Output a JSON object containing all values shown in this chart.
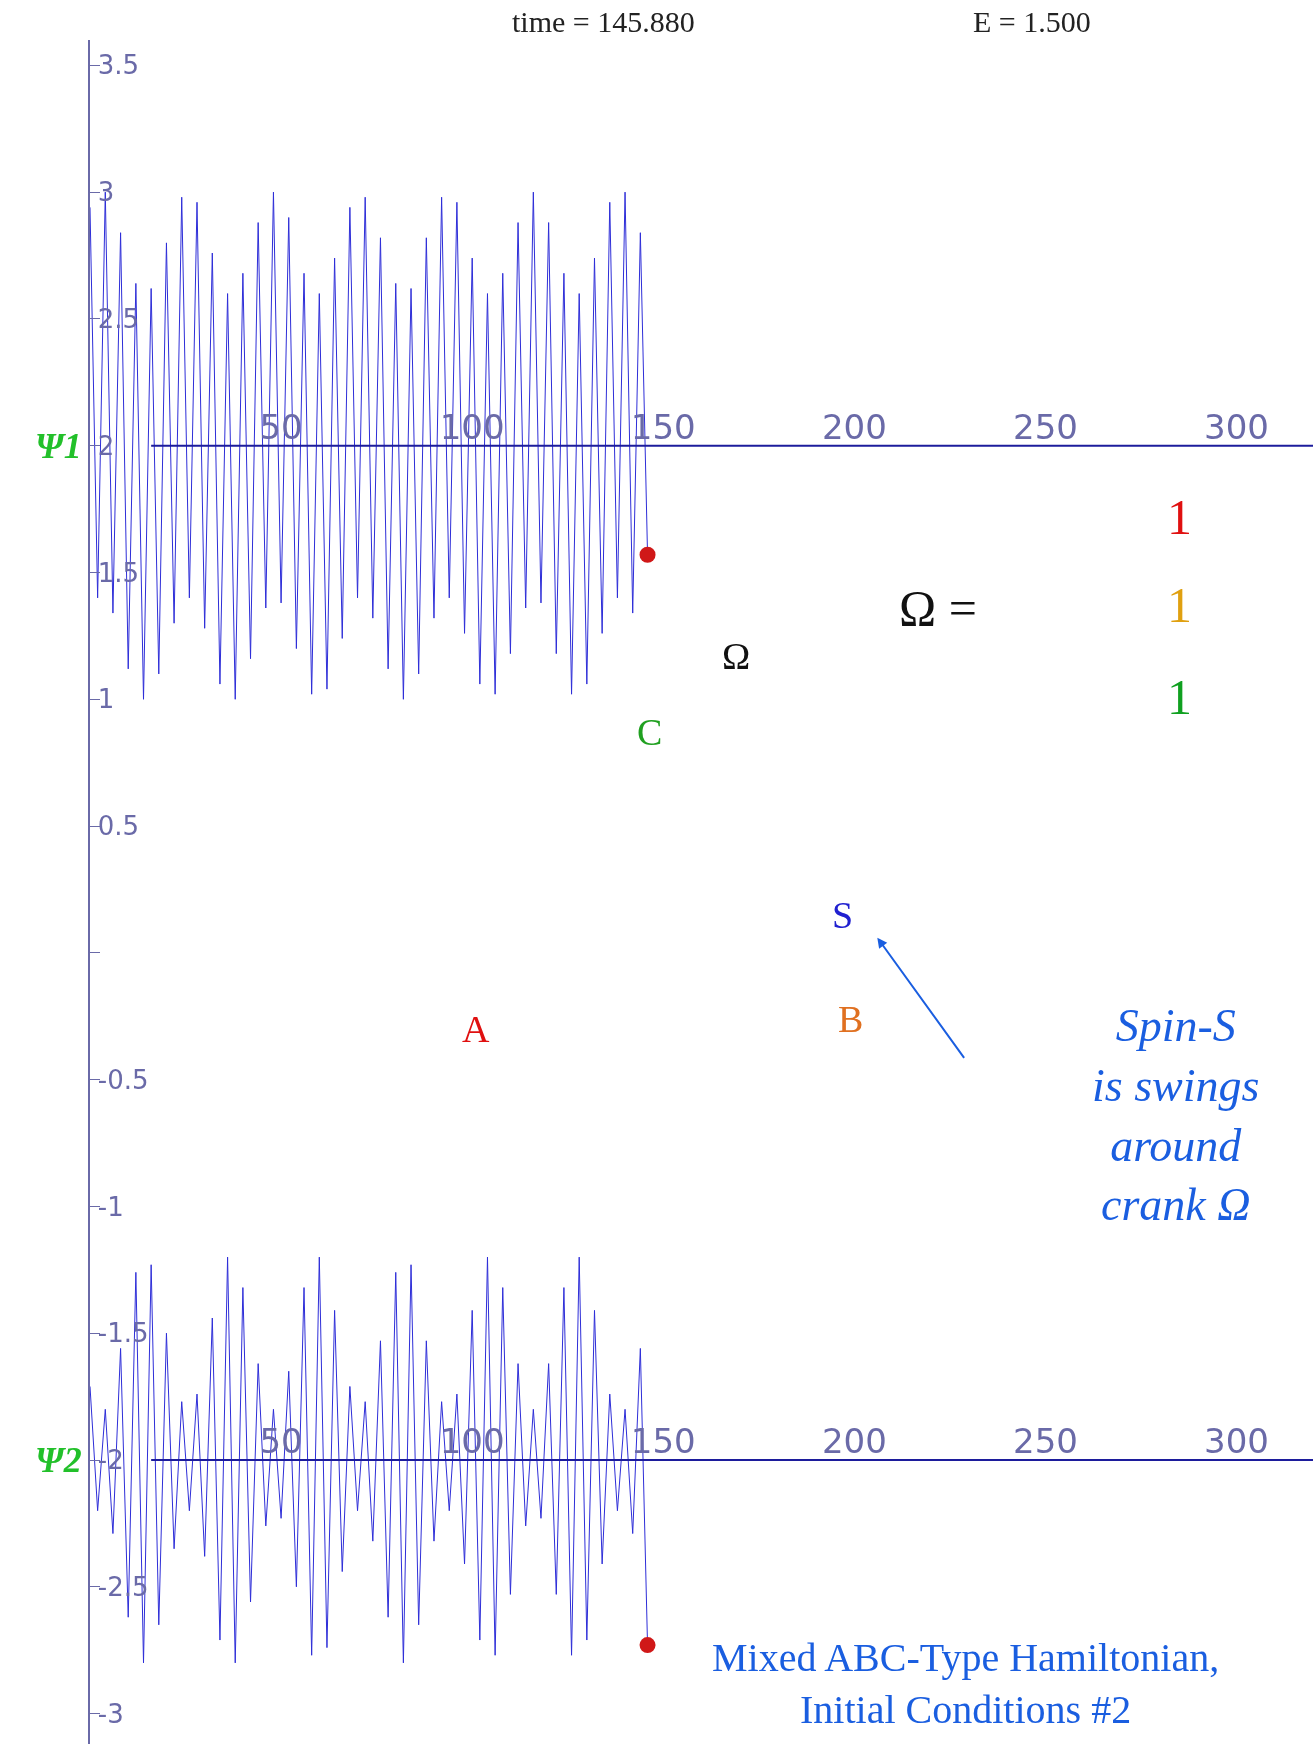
{
  "chart_data": {
    "type": "line",
    "x": [
      0,
      2,
      4,
      6,
      8,
      10,
      12,
      14,
      16,
      18,
      20,
      22,
      24,
      26,
      28,
      30,
      32,
      34,
      36,
      38,
      40,
      42,
      44,
      46,
      48,
      50,
      52,
      54,
      56,
      58,
      60,
      62,
      64,
      66,
      68,
      70,
      72,
      74,
      76,
      78,
      80,
      82,
      84,
      86,
      88,
      90,
      92,
      94,
      96,
      98,
      100,
      102,
      104,
      106,
      108,
      110,
      112,
      114,
      116,
      118,
      120,
      122,
      124,
      126,
      128,
      130,
      132,
      134,
      136,
      138,
      140,
      142,
      144,
      145.88
    ],
    "series": [
      {
        "color": "#2e2ed8",
        "values": [
          2.94,
          1.4,
          3.0,
          1.34,
          2.84,
          1.12,
          2.64,
          1.0,
          2.62,
          1.1,
          2.8,
          1.3,
          2.98,
          1.4,
          2.96,
          1.28,
          2.76,
          1.06,
          2.6,
          1.0,
          2.68,
          1.16,
          2.88,
          1.36,
          3.0,
          1.38,
          2.9,
          1.2,
          2.68,
          1.02,
          2.6,
          1.04,
          2.74,
          1.24,
          2.94,
          1.4,
          2.98,
          1.32,
          2.82,
          1.12,
          2.64,
          1.0,
          2.62,
          1.1,
          2.82,
          1.32,
          2.98,
          1.4,
          2.96,
          1.26,
          2.74,
          1.06,
          2.6,
          1.02,
          2.68,
          1.18,
          2.88,
          1.36,
          3.0,
          1.38,
          2.88,
          1.18,
          2.68,
          1.02,
          2.6,
          1.06,
          2.74,
          1.26,
          2.96,
          1.4,
          3.0,
          1.34,
          2.84,
          1.57
        ]
      },
      {
        "color": "#2e2ed8",
        "axis": "x2",
        "values": [
          -1.71,
          -2.2,
          -1.8,
          -2.29,
          -1.56,
          -2.62,
          -1.26,
          -2.8,
          -1.23,
          -2.65,
          -1.5,
          -2.35,
          -1.77,
          -2.2,
          -1.74,
          -2.38,
          -1.44,
          -2.71,
          -1.2,
          -2.8,
          -1.32,
          -2.56,
          -1.62,
          -2.26,
          -1.8,
          -2.23,
          -1.65,
          -2.5,
          -1.32,
          -2.77,
          -1.2,
          -2.74,
          -1.41,
          -2.44,
          -1.71,
          -2.2,
          -1.77,
          -2.32,
          -1.53,
          -2.62,
          -1.26,
          -2.8,
          -1.23,
          -2.65,
          -1.53,
          -2.32,
          -1.77,
          -2.2,
          -1.74,
          -2.41,
          -1.41,
          -2.71,
          -1.2,
          -2.77,
          -1.32,
          -2.53,
          -1.62,
          -2.26,
          -1.8,
          -2.23,
          -1.62,
          -2.53,
          -1.32,
          -2.77,
          -1.2,
          -2.71,
          -1.41,
          -2.41,
          -1.74,
          -2.2,
          -1.8,
          -2.29,
          -1.56,
          -2.73
        ]
      },
      {
        "type": "scatter",
        "marker": "circle",
        "color": "#d01818",
        "x": [
          145.88
        ],
        "values": [
          1.57
        ]
      },
      {
        "type": "scatter",
        "marker": "circle",
        "color": "#d01818",
        "axis": "x2",
        "x": [
          145.88
        ],
        "values": [
          -2.73
        ]
      }
    ],
    "xlim": [
      0,
      320
    ],
    "xticks": [
      50,
      100,
      150,
      200,
      250,
      300
    ],
    "x2lim": [
      0,
      320
    ],
    "x2ticks": [
      50,
      100,
      150,
      200,
      250,
      300
    ],
    "ylim": [
      -3.12,
      3.6
    ],
    "yticks": [
      3.5,
      3,
      2.5,
      2,
      1.5,
      1,
      0.5,
      {
        "value": 0,
        "label": null
      },
      -0.5,
      -1,
      -1.5,
      -2,
      -2.5,
      -3
    ],
    "ref_lines": [
      {
        "axis": "y",
        "value": 2,
        "color": "#1c1c9c",
        "label": "Ψ1"
      },
      {
        "axis": "y",
        "value": -2,
        "color": "#1c1c9c",
        "label": "Ψ2"
      }
    ],
    "annotations": [
      "time = 145.880",
      "E = 1.500",
      "Ω =",
      "1",
      "1",
      "1",
      "Ω",
      "C",
      "S",
      "A",
      "B",
      "Spin-S\nis swings\naround\ncrank Ω",
      "Mixed ABC-Type Hamiltonian,\nInitial Conditions #2"
    ]
  }
}
